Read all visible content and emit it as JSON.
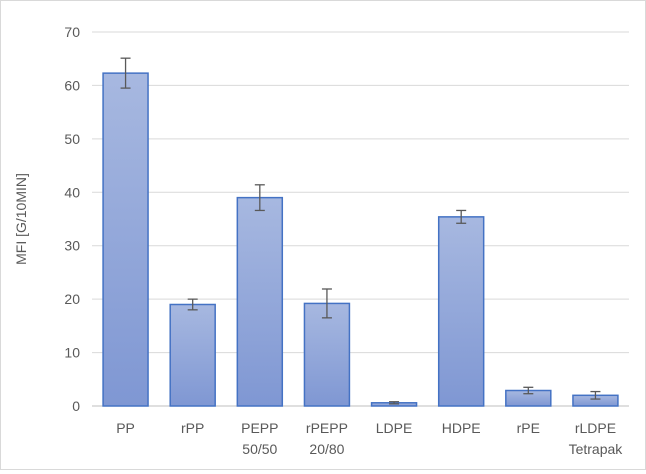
{
  "chart_data": {
    "type": "bar",
    "title": "",
    "xlabel": "",
    "ylabel": "MFI [G/10MIN]",
    "ylim": [
      0,
      70
    ],
    "yticks": [
      0,
      10,
      20,
      30,
      40,
      50,
      60,
      70
    ],
    "grid": true,
    "legend": "none",
    "categories": [
      [
        "PP"
      ],
      [
        "rPP"
      ],
      [
        "PEPP",
        "50/50"
      ],
      [
        "rPEPP",
        "20/80"
      ],
      [
        "LDPE"
      ],
      [
        "HDPE"
      ],
      [
        "rPE"
      ],
      [
        "rLDPE",
        "Tetrapak"
      ]
    ],
    "series": [
      {
        "values": [
          62.3,
          19.0,
          39.0,
          19.2,
          0.6,
          35.4,
          2.9,
          2.0
        ],
        "error": [
          2.8,
          1.0,
          2.4,
          2.7,
          0.2,
          1.2,
          0.6,
          0.7
        ]
      }
    ],
    "colors": {
      "bar_top": "#a7b8e0",
      "bar_bottom": "#7f97d3",
      "bar_edge": "#4472c4",
      "error_bar": "#595959",
      "grid": "#d9d9d9",
      "axis": "#bfbfbf"
    }
  }
}
